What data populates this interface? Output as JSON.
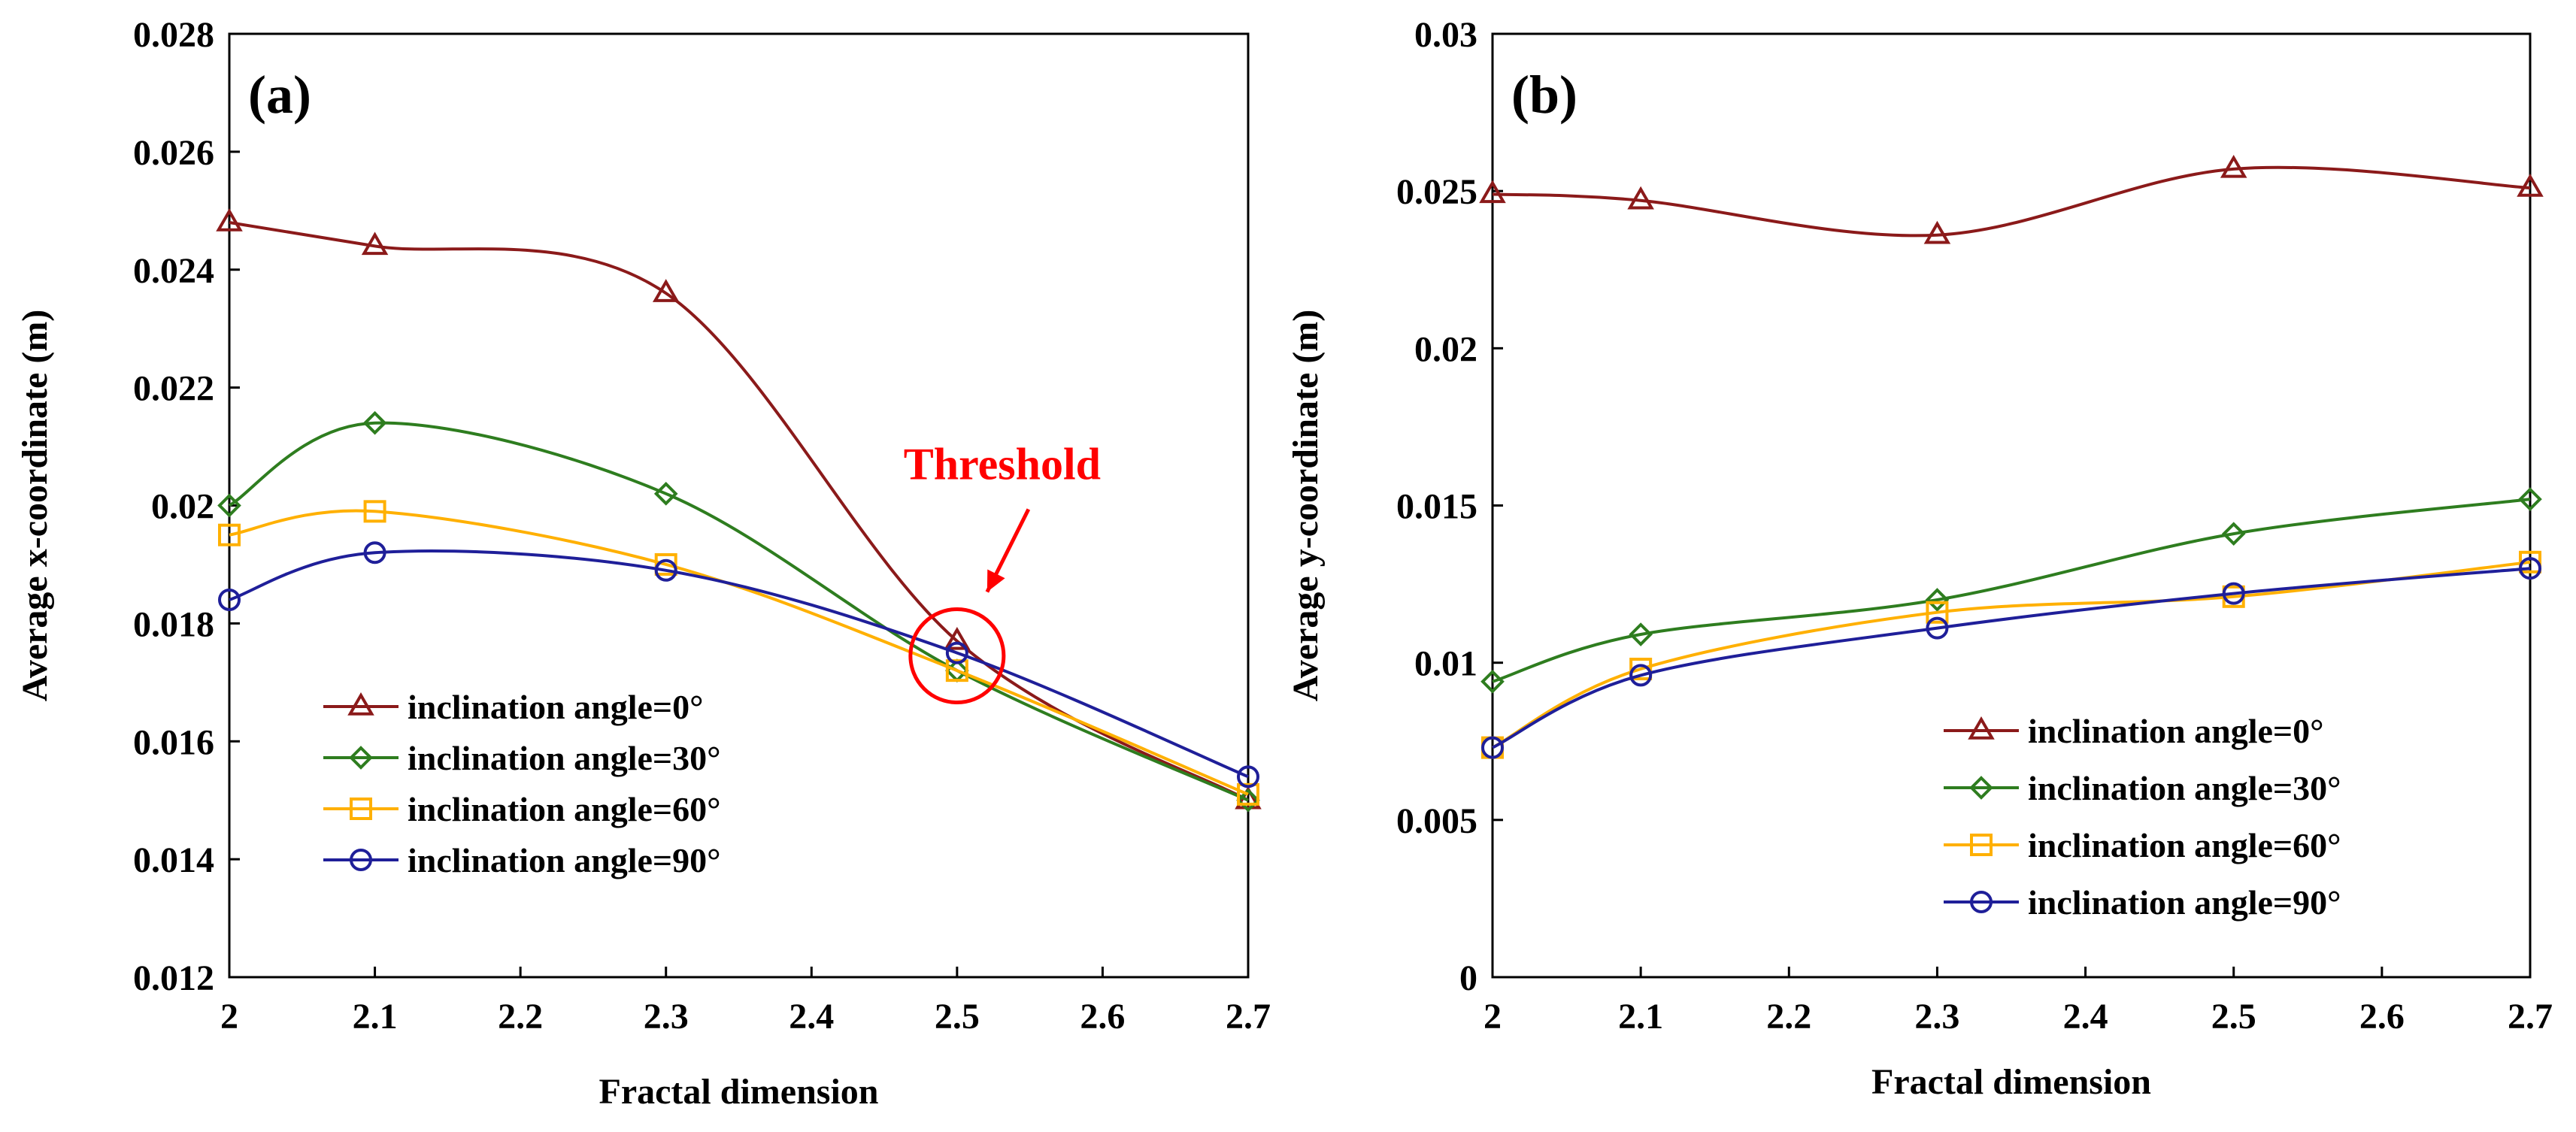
{
  "series_styles": [
    {
      "color": "#8B1A1A",
      "marker": "triangle"
    },
    {
      "color": "#2E7D1F",
      "marker": "diamond"
    },
    {
      "color": "#FFB000",
      "marker": "square"
    },
    {
      "color": "#1F1F99",
      "marker": "circle"
    }
  ],
  "chart_data": [
    {
      "type": "line",
      "panel_label": "(a)",
      "xlabel": "Fractal dimension",
      "ylabel": "Average  x-coordinate (m)",
      "xlim": [
        2,
        2.7
      ],
      "ylim": [
        0.012,
        0.028
      ],
      "x_ticks": [
        "2",
        "2.1",
        "2.2",
        "2.3",
        "2.4",
        "2.5",
        "2.6",
        "2.7"
      ],
      "y_ticks": [
        "0.012",
        "0.014",
        "0.016",
        "0.018",
        "0.02",
        "0.022",
        "0.024",
        "0.026",
        "0.028"
      ],
      "x": [
        2,
        2.1,
        2.3,
        2.5,
        2.7
      ],
      "legend_position": "bottom-left",
      "series": [
        {
          "name": "inclination angle=0°",
          "values": [
            0.0248,
            0.0244,
            0.0236,
            0.0177,
            0.015
          ]
        },
        {
          "name": "inclination angle=30°",
          "values": [
            0.02,
            0.0214,
            0.0202,
            0.0172,
            0.015
          ]
        },
        {
          "name": "inclination angle=60°",
          "values": [
            0.0195,
            0.0199,
            0.019,
            0.0172,
            0.0151
          ]
        },
        {
          "name": "inclination angle=90°",
          "values": [
            0.0184,
            0.0192,
            0.0189,
            0.0175,
            0.0154
          ]
        }
      ],
      "annotation": {
        "text": "Threshold",
        "x": 2.5,
        "y": 0.01745
      }
    },
    {
      "type": "line",
      "panel_label": "(b)",
      "xlabel": "Fractal dimension",
      "ylabel": "Average  y-coordinate (m)",
      "xlim": [
        2,
        2.7
      ],
      "ylim": [
        0,
        0.03
      ],
      "x_ticks": [
        "2",
        "2.1",
        "2.2",
        "2.3",
        "2.4",
        "2.5",
        "2.6",
        "2.7"
      ],
      "y_ticks": [
        "0",
        "0.005",
        "0.01",
        "0.015",
        "0.02",
        "0.025",
        "0.03"
      ],
      "x": [
        2,
        2.1,
        2.3,
        2.5,
        2.7
      ],
      "legend_position": "bottom-right",
      "series": [
        {
          "name": "inclination angle=0°",
          "values": [
            0.0249,
            0.0247,
            0.0236,
            0.0257,
            0.0251
          ]
        },
        {
          "name": "inclination angle=30°",
          "values": [
            0.0094,
            0.0109,
            0.012,
            0.0141,
            0.0152
          ]
        },
        {
          "name": "inclination angle=60°",
          "values": [
            0.0073,
            0.0098,
            0.0116,
            0.0121,
            0.0132
          ]
        },
        {
          "name": "inclination angle=90°",
          "values": [
            0.0073,
            0.0096,
            0.0111,
            0.0122,
            0.013
          ]
        }
      ]
    }
  ]
}
